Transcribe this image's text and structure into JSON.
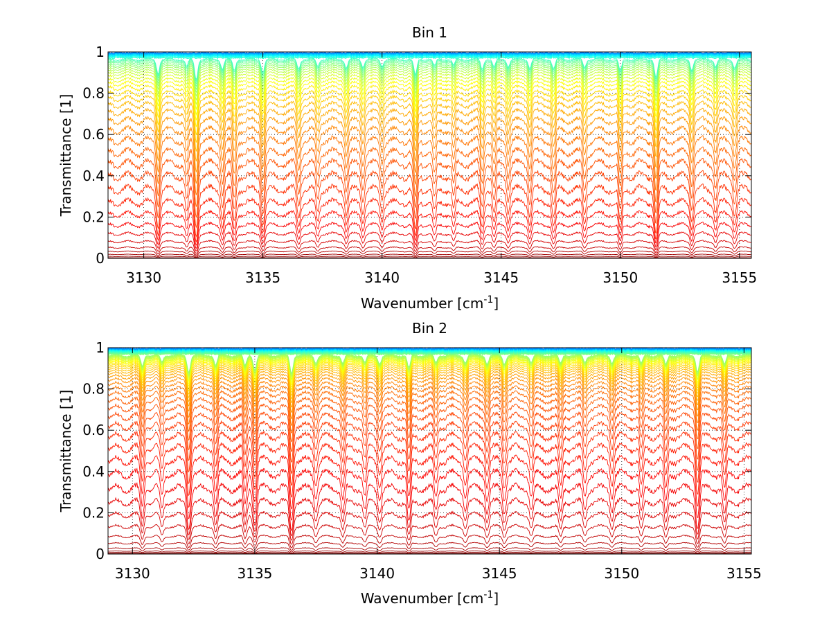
{
  "chart_data": [
    {
      "type": "line",
      "title": "Bin 1",
      "xlabel": "Wavenumber [cm",
      "xlabel_sup": "-1",
      "xlabel_end": "]",
      "ylabel": "Transmittance [1]",
      "xlim": [
        3128.5,
        3155.5
      ],
      "ylim": [
        0,
        1
      ],
      "xticks": [
        3130,
        3135,
        3140,
        3145,
        3150,
        3155
      ],
      "xtick_labels": [
        "3130",
        "3135",
        "3140",
        "3145",
        "3150",
        "3155"
      ],
      "yticks": [
        0,
        0.2,
        0.4,
        0.6,
        0.8,
        1
      ],
      "ytick_labels": [
        "0",
        "0.2",
        "0.4",
        "0.6",
        "0.8",
        "1"
      ],
      "grid": "dotted",
      "colormap": "jet",
      "n_series": 45,
      "series_baselines": [
        0.003,
        0.01,
        0.02,
        0.035,
        0.055,
        0.085,
        0.125,
        0.17,
        0.225,
        0.285,
        0.35,
        0.415,
        0.475,
        0.53,
        0.585,
        0.635,
        0.68,
        0.72,
        0.755,
        0.785,
        0.81,
        0.835,
        0.855,
        0.872,
        0.888,
        0.902,
        0.914,
        0.925,
        0.935,
        0.943,
        0.951,
        0.958,
        0.964,
        0.969,
        0.974,
        0.978,
        0.982,
        0.985,
        0.988,
        0.991,
        0.993,
        0.995,
        0.997,
        0.998,
        0.999
      ],
      "absorption_lines_cm-1": [
        3130.6,
        3131.8,
        3132.2,
        3133.3,
        3133.8,
        3135.0,
        3136.5,
        3137.3,
        3138.5,
        3139.2,
        3140.0,
        3141.4,
        3142.2,
        3143.0,
        3144.2,
        3144.7,
        3145.3,
        3146.2,
        3147.2,
        3148.5,
        3150.0,
        3151.5,
        3153.0,
        3154.0,
        3154.8
      ],
      "absorption_depths": [
        0.6,
        0.3,
        0.9,
        0.4,
        0.5,
        0.55,
        0.4,
        0.3,
        0.35,
        0.3,
        0.3,
        0.7,
        0.3,
        0.25,
        0.4,
        0.35,
        0.3,
        0.35,
        0.4,
        0.35,
        0.5,
        0.8,
        0.45,
        0.3,
        0.35
      ]
    },
    {
      "type": "line",
      "title": "Bin 2",
      "xlabel": "Wavenumber [cm",
      "xlabel_sup": "-1",
      "xlabel_end": "]",
      "ylabel": "Transmittance [1]",
      "xlim": [
        3129,
        3155.3
      ],
      "ylim": [
        0,
        1
      ],
      "xticks": [
        3130,
        3135,
        3140,
        3145,
        3150,
        3155
      ],
      "xtick_labels": [
        "3130",
        "3135",
        "3140",
        "3145",
        "3150",
        "3155"
      ],
      "yticks": [
        0,
        0.2,
        0.4,
        0.6,
        0.8,
        1
      ],
      "ytick_labels": [
        "0",
        "0.2",
        "0.4",
        "0.6",
        "0.8",
        "1"
      ],
      "grid": "dotted",
      "colormap": "jet",
      "n_series": 60,
      "series_baselines": [
        0.003,
        0.008,
        0.015,
        0.03,
        0.055,
        0.09,
        0.14,
        0.2,
        0.265,
        0.335,
        0.405,
        0.47,
        0.53,
        0.585,
        0.635,
        0.68,
        0.72,
        0.755,
        0.785,
        0.81,
        0.832,
        0.852,
        0.868,
        0.882,
        0.894,
        0.904,
        0.913,
        0.921,
        0.928,
        0.934,
        0.939,
        0.944,
        0.948,
        0.952,
        0.956,
        0.959,
        0.962,
        0.965,
        0.968,
        0.971,
        0.973,
        0.975,
        0.977,
        0.979,
        0.981,
        0.983,
        0.985,
        0.987,
        0.988,
        0.99,
        0.991,
        0.992,
        0.993,
        0.994,
        0.995,
        0.996,
        0.997,
        0.998,
        0.999,
        1.0
      ],
      "absorption_lines_cm-1": [
        3130.4,
        3131.2,
        3132.3,
        3133.4,
        3134.6,
        3135.0,
        3136.5,
        3137.5,
        3138.6,
        3139.5,
        3140.1,
        3141.3,
        3142.4,
        3143.6,
        3144.5,
        3145.2,
        3146.3,
        3147.5,
        3148.5,
        3149.6,
        3150.8,
        3151.8,
        3153.1,
        3154.2
      ],
      "absorption_depths": [
        0.45,
        0.3,
        0.7,
        0.4,
        0.45,
        0.6,
        0.75,
        0.3,
        0.35,
        0.3,
        0.35,
        0.55,
        0.3,
        0.3,
        0.35,
        0.35,
        0.3,
        0.35,
        0.3,
        0.3,
        0.35,
        0.4,
        0.7,
        0.4
      ]
    }
  ]
}
